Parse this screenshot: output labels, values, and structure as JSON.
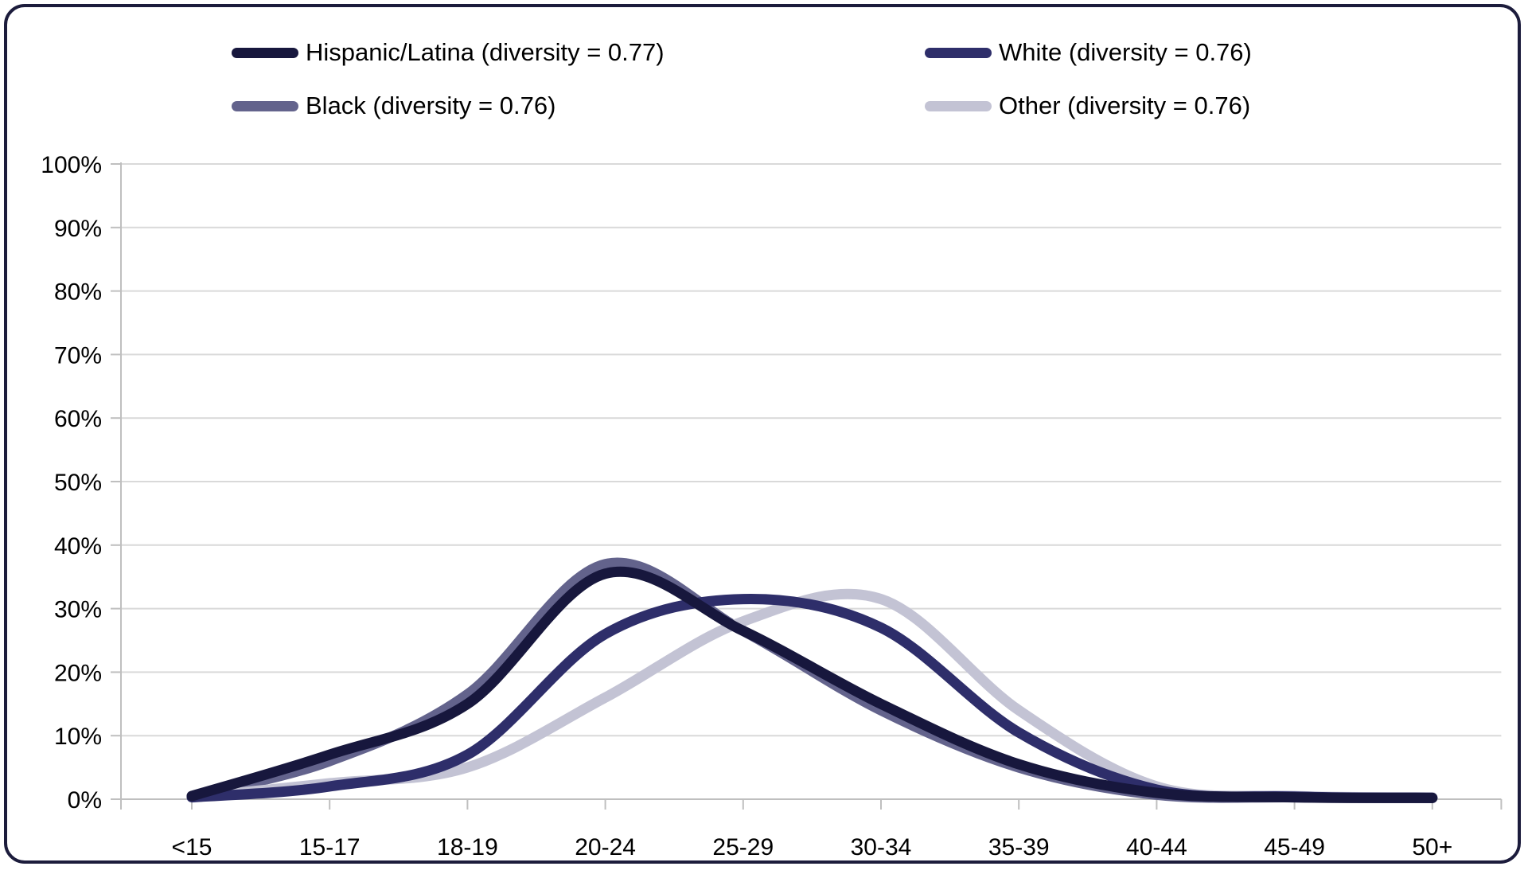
{
  "chart_data": {
    "type": "line",
    "title": "",
    "xlabel": "",
    "ylabel": "",
    "categories": [
      "<15",
      "15-17",
      "18-19",
      "20-24",
      "25-29",
      "30-34",
      "35-39",
      "40-44",
      "45-49",
      "50+"
    ],
    "series": [
      {
        "name": "Hispanic/Latina (diversity = 0.77)",
        "color": "#17173d",
        "values": [
          0.5,
          7,
          15,
          35.5,
          26.5,
          15,
          5.5,
          1,
          0.3,
          0.2
        ]
      },
      {
        "name": "White (diversity = 0.76)",
        "color": "#2e2e6a",
        "values": [
          0.3,
          2,
          7,
          26,
          31.5,
          27,
          10.5,
          1.5,
          0.4,
          0.2
        ]
      },
      {
        "name": "Black (diversity = 0.76)",
        "color": "#63638c",
        "values": [
          0.5,
          6,
          16.5,
          37,
          26.5,
          14,
          5,
          0.7,
          0.3,
          0.2
        ]
      },
      {
        "name": "Other (diversity = 0.76)",
        "color": "#c3c3d4",
        "values": [
          0.3,
          2.5,
          5,
          16,
          28,
          31.5,
          14,
          2,
          0.5,
          0.3
        ]
      }
    ],
    "draw_order": [
      2,
      3,
      1,
      0
    ],
    "ylim": [
      0,
      100
    ],
    "y_tick_step": 10,
    "y_tick_suffix": "%",
    "grid": true,
    "legend_position": "top",
    "line_smoothing": true
  },
  "styles": {
    "grid_color": "#d9d9d9",
    "axis_color": "#bfbfbf",
    "border_color": "#1c1c3c",
    "text_color": "#000000",
    "background": "#ffffff"
  }
}
